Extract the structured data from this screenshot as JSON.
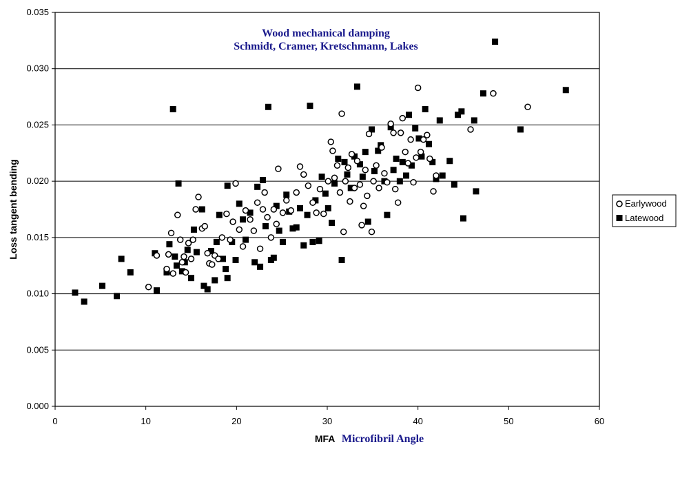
{
  "chart_data": {
    "type": "scatter",
    "title": "Wood mechanical damping",
    "subtitle": "Schmidt, Cramer, Kretschmann, Lakes",
    "xlabel_prefix": "MFA",
    "xlabel": "Microfibril Angle",
    "ylabel": "Loss tangent bending",
    "xlim": [
      0,
      60
    ],
    "ylim": [
      0,
      0.035
    ],
    "xticks": [
      "0",
      "10",
      "20",
      "30",
      "40",
      "50",
      "60"
    ],
    "yticks": [
      "0.000",
      "0.005",
      "0.010",
      "0.015",
      "0.020",
      "0.025",
      "0.030",
      "0.035"
    ],
    "grid": "horizontal",
    "legend_position": "right",
    "colors": {
      "title": "#1a1a8c",
      "markers": "#000000",
      "grid": "#000000"
    },
    "series": [
      {
        "name": "Earlywood",
        "marker": "open-circle",
        "points": [
          [
            10.3,
            0.0106
          ],
          [
            11.2,
            0.0134
          ],
          [
            12.3,
            0.0122
          ],
          [
            12.5,
            0.0135
          ],
          [
            12.8,
            0.0154
          ],
          [
            13.0,
            0.0118
          ],
          [
            13.5,
            0.017
          ],
          [
            13.8,
            0.0148
          ],
          [
            14.0,
            0.0128
          ],
          [
            14.2,
            0.0133
          ],
          [
            14.4,
            0.0119
          ],
          [
            14.7,
            0.0145
          ],
          [
            15.0,
            0.0131
          ],
          [
            15.2,
            0.0148
          ],
          [
            15.5,
            0.0175
          ],
          [
            15.8,
            0.0186
          ],
          [
            16.2,
            0.0158
          ],
          [
            16.5,
            0.016
          ],
          [
            16.8,
            0.0136
          ],
          [
            17.0,
            0.0127
          ],
          [
            17.3,
            0.0126
          ],
          [
            17.6,
            0.0134
          ],
          [
            18.0,
            0.0131
          ],
          [
            18.4,
            0.015
          ],
          [
            18.9,
            0.0171
          ],
          [
            19.3,
            0.0148
          ],
          [
            19.6,
            0.0164
          ],
          [
            19.9,
            0.0198
          ],
          [
            20.3,
            0.0157
          ],
          [
            20.7,
            0.0142
          ],
          [
            21.0,
            0.0174
          ],
          [
            21.5,
            0.0166
          ],
          [
            21.9,
            0.0156
          ],
          [
            22.3,
            0.0181
          ],
          [
            22.6,
            0.014
          ],
          [
            22.9,
            0.0175
          ],
          [
            23.1,
            0.019
          ],
          [
            23.4,
            0.0168
          ],
          [
            23.8,
            0.015
          ],
          [
            24.1,
            0.0175
          ],
          [
            24.4,
            0.0162
          ],
          [
            24.6,
            0.0211
          ],
          [
            25.1,
            0.0172
          ],
          [
            25.5,
            0.0183
          ],
          [
            26.0,
            0.0174
          ],
          [
            26.6,
            0.019
          ],
          [
            27.0,
            0.0213
          ],
          [
            27.4,
            0.0206
          ],
          [
            27.9,
            0.0196
          ],
          [
            28.4,
            0.0181
          ],
          [
            28.8,
            0.0172
          ],
          [
            29.2,
            0.0193
          ],
          [
            29.6,
            0.0171
          ],
          [
            30.1,
            0.02
          ],
          [
            30.4,
            0.0235
          ],
          [
            30.6,
            0.0227
          ],
          [
            30.8,
            0.0203
          ],
          [
            31.1,
            0.0214
          ],
          [
            31.4,
            0.019
          ],
          [
            31.6,
            0.026
          ],
          [
            31.8,
            0.0155
          ],
          [
            32.0,
            0.02
          ],
          [
            32.3,
            0.0212
          ],
          [
            32.5,
            0.0182
          ],
          [
            32.7,
            0.0224
          ],
          [
            33.0,
            0.0194
          ],
          [
            33.3,
            0.0218
          ],
          [
            33.6,
            0.0197
          ],
          [
            33.8,
            0.0161
          ],
          [
            34.0,
            0.0178
          ],
          [
            34.2,
            0.021
          ],
          [
            34.4,
            0.0187
          ],
          [
            34.6,
            0.0242
          ],
          [
            34.9,
            0.0155
          ],
          [
            35.1,
            0.02
          ],
          [
            35.4,
            0.0214
          ],
          [
            35.7,
            0.0194
          ],
          [
            36.0,
            0.023
          ],
          [
            36.3,
            0.0207
          ],
          [
            36.6,
            0.0199
          ],
          [
            37.0,
            0.0251
          ],
          [
            37.3,
            0.0243
          ],
          [
            37.5,
            0.0193
          ],
          [
            37.8,
            0.0181
          ],
          [
            38.1,
            0.0243
          ],
          [
            38.3,
            0.0256
          ],
          [
            38.6,
            0.0226
          ],
          [
            38.9,
            0.0216
          ],
          [
            39.2,
            0.0237
          ],
          [
            39.5,
            0.0199
          ],
          [
            39.8,
            0.0221
          ],
          [
            40.0,
            0.0283
          ],
          [
            40.3,
            0.0226
          ],
          [
            40.6,
            0.0237
          ],
          [
            41.0,
            0.0241
          ],
          [
            41.3,
            0.022
          ],
          [
            41.7,
            0.0191
          ],
          [
            42.0,
            0.0205
          ],
          [
            45.8,
            0.0246
          ],
          [
            48.3,
            0.0278
          ],
          [
            52.1,
            0.0266
          ]
        ]
      },
      {
        "name": "Latewood",
        "marker": "filled-square",
        "points": [
          [
            2.2,
            0.0101
          ],
          [
            3.2,
            0.0093
          ],
          [
            5.2,
            0.0107
          ],
          [
            6.8,
            0.0098
          ],
          [
            7.3,
            0.0131
          ],
          [
            8.3,
            0.0119
          ],
          [
            11.0,
            0.0136
          ],
          [
            11.2,
            0.0103
          ],
          [
            12.3,
            0.0119
          ],
          [
            12.6,
            0.0144
          ],
          [
            13.0,
            0.0264
          ],
          [
            13.2,
            0.0133
          ],
          [
            13.4,
            0.0125
          ],
          [
            13.6,
            0.0198
          ],
          [
            14.0,
            0.012
          ],
          [
            14.3,
            0.0128
          ],
          [
            14.6,
            0.0139
          ],
          [
            15.0,
            0.0114
          ],
          [
            15.3,
            0.0157
          ],
          [
            15.6,
            0.0137
          ],
          [
            16.2,
            0.0175
          ],
          [
            16.4,
            0.0107
          ],
          [
            16.8,
            0.0104
          ],
          [
            17.2,
            0.0138
          ],
          [
            17.6,
            0.0112
          ],
          [
            17.8,
            0.0146
          ],
          [
            18.1,
            0.017
          ],
          [
            18.5,
            0.0131
          ],
          [
            18.8,
            0.0122
          ],
          [
            19.0,
            0.0114
          ],
          [
            19.0,
            0.0196
          ],
          [
            19.5,
            0.0146
          ],
          [
            19.9,
            0.013
          ],
          [
            20.3,
            0.018
          ],
          [
            20.7,
            0.0166
          ],
          [
            21.0,
            0.0148
          ],
          [
            21.5,
            0.0172
          ],
          [
            22.0,
            0.0128
          ],
          [
            22.3,
            0.0195
          ],
          [
            22.6,
            0.0124
          ],
          [
            22.9,
            0.0201
          ],
          [
            23.2,
            0.016
          ],
          [
            23.5,
            0.0266
          ],
          [
            23.8,
            0.013
          ],
          [
            24.1,
            0.0132
          ],
          [
            24.4,
            0.0178
          ],
          [
            24.7,
            0.0156
          ],
          [
            25.1,
            0.0146
          ],
          [
            25.5,
            0.0188
          ],
          [
            25.8,
            0.0173
          ],
          [
            26.2,
            0.0158
          ],
          [
            26.6,
            0.0159
          ],
          [
            27.0,
            0.0176
          ],
          [
            27.4,
            0.0143
          ],
          [
            27.8,
            0.017
          ],
          [
            28.1,
            0.0267
          ],
          [
            28.4,
            0.0146
          ],
          [
            28.7,
            0.0183
          ],
          [
            29.1,
            0.0147
          ],
          [
            29.4,
            0.0204
          ],
          [
            29.8,
            0.0189
          ],
          [
            30.1,
            0.0176
          ],
          [
            30.5,
            0.0163
          ],
          [
            30.8,
            0.0198
          ],
          [
            31.2,
            0.022
          ],
          [
            31.6,
            0.013
          ],
          [
            31.9,
            0.0217
          ],
          [
            32.2,
            0.0206
          ],
          [
            32.6,
            0.0194
          ],
          [
            33.0,
            0.0222
          ],
          [
            33.3,
            0.0284
          ],
          [
            33.6,
            0.0215
          ],
          [
            33.9,
            0.0204
          ],
          [
            34.2,
            0.0226
          ],
          [
            34.5,
            0.0164
          ],
          [
            34.9,
            0.0246
          ],
          [
            35.2,
            0.0209
          ],
          [
            35.6,
            0.0227
          ],
          [
            35.9,
            0.0232
          ],
          [
            36.3,
            0.02
          ],
          [
            36.6,
            0.017
          ],
          [
            37.0,
            0.0248
          ],
          [
            37.3,
            0.021
          ],
          [
            37.6,
            0.022
          ],
          [
            38.0,
            0.02
          ],
          [
            38.3,
            0.0217
          ],
          [
            38.7,
            0.0205
          ],
          [
            39.0,
            0.0259
          ],
          [
            39.3,
            0.0214
          ],
          [
            39.7,
            0.0247
          ],
          [
            40.1,
            0.0238
          ],
          [
            40.4,
            0.0222
          ],
          [
            40.8,
            0.0264
          ],
          [
            41.2,
            0.0233
          ],
          [
            41.6,
            0.0217
          ],
          [
            42.0,
            0.0202
          ],
          [
            42.4,
            0.0254
          ],
          [
            42.7,
            0.0205
          ],
          [
            43.5,
            0.0218
          ],
          [
            44.0,
            0.0197
          ],
          [
            44.4,
            0.0259
          ],
          [
            44.8,
            0.0262
          ],
          [
            45.0,
            0.0167
          ],
          [
            46.2,
            0.0254
          ],
          [
            46.4,
            0.0191
          ],
          [
            47.2,
            0.0278
          ],
          [
            48.5,
            0.0324
          ],
          [
            51.3,
            0.0246
          ],
          [
            56.3,
            0.0281
          ]
        ]
      }
    ]
  }
}
